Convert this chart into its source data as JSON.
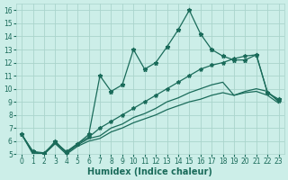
{
  "xlabel": "Humidex (Indice chaleur)",
  "background_color": "#cceee8",
  "grid_color": "#aad4cc",
  "line_color": "#1a6b5a",
  "xlim": [
    -0.5,
    23.5
  ],
  "ylim": [
    5,
    16.5
  ],
  "xticks": [
    0,
    1,
    2,
    3,
    4,
    5,
    6,
    7,
    8,
    9,
    10,
    11,
    12,
    13,
    14,
    15,
    16,
    17,
    18,
    19,
    20,
    21,
    22,
    23
  ],
  "yticks": [
    5,
    6,
    7,
    8,
    9,
    10,
    11,
    12,
    13,
    14,
    15,
    16
  ],
  "line1_x": [
    0,
    1,
    2,
    3,
    4,
    5,
    6,
    7,
    8,
    9,
    10,
    11,
    12,
    13,
    14,
    15,
    16,
    17,
    18,
    19,
    20,
    21,
    22,
    23
  ],
  "line1_y": [
    6.5,
    5.2,
    5.1,
    5.9,
    5.2,
    5.8,
    6.3,
    7.0,
    7.5,
    8.0,
    8.5,
    9.0,
    9.5,
    10.0,
    10.5,
    11.0,
    11.5,
    11.8,
    12.0,
    12.3,
    12.5,
    12.6,
    9.7,
    9.1
  ],
  "line2_x": [
    0,
    1,
    2,
    3,
    4,
    5,
    6,
    7,
    8,
    9,
    10,
    11,
    12,
    13,
    14,
    15,
    16,
    17,
    18,
    19,
    20,
    21,
    22,
    23
  ],
  "line2_y": [
    6.5,
    5.2,
    5.0,
    6.0,
    5.1,
    5.8,
    6.5,
    11.0,
    9.8,
    10.3,
    13.0,
    11.5,
    12.0,
    13.2,
    14.5,
    16.0,
    14.2,
    13.0,
    12.5,
    12.2,
    12.2,
    12.6,
    9.7,
    9.2
  ],
  "line3_x": [
    0,
    1,
    2,
    3,
    4,
    5,
    6,
    7,
    8,
    9,
    10,
    11,
    12,
    13,
    14,
    15,
    16,
    17,
    18,
    19,
    20,
    21,
    22,
    23
  ],
  "line3_y": [
    6.5,
    5.1,
    5.0,
    5.9,
    5.1,
    5.7,
    6.2,
    6.4,
    7.0,
    7.3,
    7.8,
    8.1,
    8.5,
    9.0,
    9.3,
    9.7,
    10.0,
    10.3,
    10.5,
    9.5,
    9.8,
    10.0,
    9.8,
    9.0
  ],
  "line4_x": [
    0,
    1,
    2,
    3,
    4,
    5,
    6,
    7,
    8,
    9,
    10,
    11,
    12,
    13,
    14,
    15,
    16,
    17,
    18,
    19,
    20,
    21,
    22,
    23
  ],
  "line4_y": [
    6.5,
    5.0,
    5.0,
    5.8,
    5.0,
    5.6,
    6.0,
    6.2,
    6.7,
    7.0,
    7.4,
    7.7,
    8.0,
    8.4,
    8.7,
    9.0,
    9.2,
    9.5,
    9.7,
    9.5,
    9.7,
    9.8,
    9.5,
    8.9
  ],
  "marker": "*",
  "markersize": 3,
  "linewidth": 0.9,
  "tick_fontsize": 5.5,
  "xlabel_fontsize": 7
}
